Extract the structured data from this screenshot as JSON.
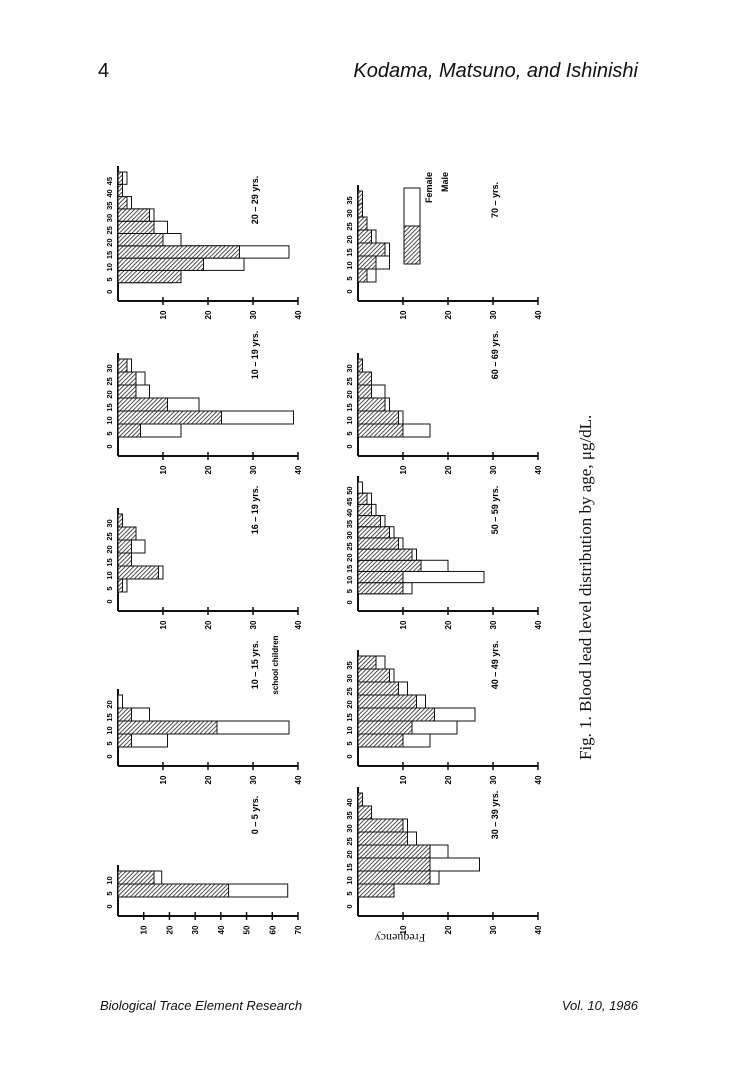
{
  "header": {
    "page_number": "4",
    "authors": "Kodama, Matsuno, and Ishinishi"
  },
  "footer": {
    "journal": "Biological Trace Element Research",
    "volume": "Vol. 10, 1986"
  },
  "caption": "Fig. 1.  Blood lead level distribution by age, μg/dL.",
  "y_axis_label": "Frequency",
  "colors": {
    "female": "#ffffff",
    "male_hatch": "#222222"
  },
  "legend": {
    "female": "Female",
    "male": "Male"
  },
  "chart_data": [
    {
      "type": "bar",
      "title": "0 – 5 yrs.",
      "note": "",
      "categories": [
        "0",
        "5",
        "10"
      ],
      "xtick_labels": [
        "0",
        "5",
        "10"
      ],
      "yticks": [
        "10",
        "20",
        "30",
        "40",
        "50",
        "60",
        "70"
      ],
      "ylim": [
        0,
        70
      ],
      "series": [
        {
          "name": "Female",
          "values": [
            0,
            66,
            17
          ]
        },
        {
          "name": "Male",
          "values": [
            0,
            43,
            14
          ]
        }
      ]
    },
    {
      "type": "bar",
      "title": "10 – 15 yrs.",
      "note": "school children",
      "categories": [
        "0",
        "5",
        "10",
        "15",
        "20"
      ],
      "xtick_labels": [
        "0",
        "5",
        "10",
        "15",
        "20"
      ],
      "yticks": [
        "10",
        "20",
        "30",
        "40"
      ],
      "ylim": [
        0,
        40
      ],
      "series": [
        {
          "name": "Female",
          "values": [
            0,
            11,
            38,
            7,
            1
          ]
        },
        {
          "name": "Male",
          "values": [
            0,
            3,
            22,
            3,
            0
          ]
        }
      ]
    },
    {
      "type": "bar",
      "title": "16 – 19 yrs.",
      "note": "",
      "categories": [
        "0",
        "5",
        "10",
        "15",
        "20",
        "25",
        "30"
      ],
      "xtick_labels": [
        "0",
        "5",
        "10",
        "15",
        "20",
        "25",
        "30"
      ],
      "yticks": [
        "10",
        "20",
        "30",
        "40"
      ],
      "ylim": [
        0,
        40
      ],
      "series": [
        {
          "name": "Female",
          "values": [
            0,
            2,
            10,
            3,
            6,
            3,
            1
          ]
        },
        {
          "name": "Male",
          "values": [
            0,
            1,
            9,
            3,
            3,
            4,
            1
          ]
        }
      ]
    },
    {
      "type": "bar",
      "title": "10 – 19 yrs.",
      "note": "",
      "categories": [
        "0",
        "5",
        "10",
        "15",
        "20",
        "25",
        "30"
      ],
      "xtick_labels": [
        "0",
        "5",
        "10",
        "15",
        "20",
        "25",
        "30"
      ],
      "yticks": [
        "10",
        "20",
        "30",
        "40"
      ],
      "ylim": [
        0,
        40
      ],
      "series": [
        {
          "name": "Female",
          "values": [
            0,
            14,
            39,
            18,
            7,
            6,
            3
          ]
        },
        {
          "name": "Male",
          "values": [
            0,
            5,
            23,
            11,
            4,
            4,
            2
          ]
        }
      ]
    },
    {
      "type": "bar",
      "title": "20 – 29 yrs.",
      "note": "",
      "categories": [
        "0",
        "5",
        "10",
        "15",
        "20",
        "25",
        "30",
        "35",
        "40",
        "45"
      ],
      "xtick_labels": [
        "0",
        "5",
        "10",
        "15",
        "20",
        "25",
        "30",
        "35",
        "40",
        "45"
      ],
      "yticks": [
        "10",
        "20",
        "30",
        "40"
      ],
      "ylim": [
        0,
        40
      ],
      "series": [
        {
          "name": "Female",
          "values": [
            0,
            12,
            28,
            38,
            14,
            11,
            8,
            3,
            0,
            2
          ]
        },
        {
          "name": "Male",
          "values": [
            0,
            14,
            19,
            27,
            10,
            8,
            7,
            2,
            1,
            1
          ]
        }
      ]
    },
    {
      "type": "bar",
      "title": "30 – 39 yrs.",
      "note": "",
      "categories": [
        "0",
        "5",
        "10",
        "15",
        "20",
        "25",
        "30",
        "35",
        "40"
      ],
      "xtick_labels": [
        "0",
        "5",
        "10",
        "15",
        "20",
        "25",
        "30",
        "35",
        "40"
      ],
      "yticks": [
        "10",
        "20",
        "30",
        "40"
      ],
      "ylim": [
        0,
        40
      ],
      "series": [
        {
          "name": "Female",
          "values": [
            0,
            8,
            18,
            27,
            20,
            13,
            11,
            3,
            1
          ]
        },
        {
          "name": "Male",
          "values": [
            0,
            8,
            16,
            16,
            16,
            11,
            10,
            3,
            1
          ]
        }
      ]
    },
    {
      "type": "bar",
      "title": "40 – 49 yrs.",
      "note": "",
      "categories": [
        "0",
        "5",
        "10",
        "15",
        "20",
        "25",
        "30",
        "35"
      ],
      "xtick_labels": [
        "0",
        "5",
        "10",
        "15",
        "20",
        "25",
        "30",
        "35"
      ],
      "yticks": [
        "10",
        "20",
        "30",
        "40"
      ],
      "ylim": [
        0,
        40
      ],
      "series": [
        {
          "name": "Female",
          "values": [
            0,
            16,
            22,
            26,
            15,
            11,
            8,
            6
          ]
        },
        {
          "name": "Male",
          "values": [
            0,
            10,
            12,
            17,
            13,
            9,
            7,
            4
          ]
        }
      ]
    },
    {
      "type": "bar",
      "title": "50 – 59 yrs.",
      "note": "",
      "categories": [
        "0",
        "5",
        "10",
        "15",
        "20",
        "25",
        "30",
        "35",
        "40",
        "45",
        "50"
      ],
      "xtick_labels": [
        "0",
        "5",
        "10",
        "15",
        "20",
        "25",
        "30",
        "35",
        "40",
        "45",
        "50"
      ],
      "yticks": [
        "10",
        "20",
        "30",
        "40"
      ],
      "ylim": [
        0,
        40
      ],
      "series": [
        {
          "name": "Female",
          "values": [
            0,
            12,
            28,
            20,
            13,
            10,
            8,
            6,
            4,
            3,
            1
          ]
        },
        {
          "name": "Male",
          "values": [
            0,
            10,
            10,
            14,
            12,
            9,
            7,
            5,
            3,
            2,
            0
          ]
        }
      ]
    },
    {
      "type": "bar",
      "title": "60 – 69 yrs.",
      "note": "",
      "categories": [
        "0",
        "5",
        "10",
        "15",
        "20",
        "25",
        "30"
      ],
      "xtick_labels": [
        "0",
        "5",
        "10",
        "15",
        "20",
        "25",
        "30"
      ],
      "yticks": [
        "10",
        "20",
        "30",
        "40"
      ],
      "ylim": [
        0,
        40
      ],
      "series": [
        {
          "name": "Female",
          "values": [
            0,
            16,
            10,
            7,
            6,
            3,
            0
          ]
        },
        {
          "name": "Male",
          "values": [
            0,
            10,
            9,
            6,
            3,
            3,
            1
          ]
        }
      ]
    },
    {
      "type": "bar",
      "title": "70 – yrs.",
      "note": "",
      "categories": [
        "0",
        "5",
        "10",
        "15",
        "20",
        "25",
        "30",
        "35"
      ],
      "xtick_labels": [
        "0",
        "5",
        "10",
        "15",
        "20",
        "25",
        "30",
        "35"
      ],
      "yticks": [
        "10",
        "20",
        "30",
        "40"
      ],
      "ylim": [
        0,
        40
      ],
      "series": [
        {
          "name": "Female",
          "values": [
            0,
            4,
            7,
            7,
            4,
            2,
            1,
            0
          ]
        },
        {
          "name": "Male",
          "values": [
            0,
            2,
            4,
            6,
            3,
            2,
            1,
            1
          ]
        }
      ]
    }
  ]
}
